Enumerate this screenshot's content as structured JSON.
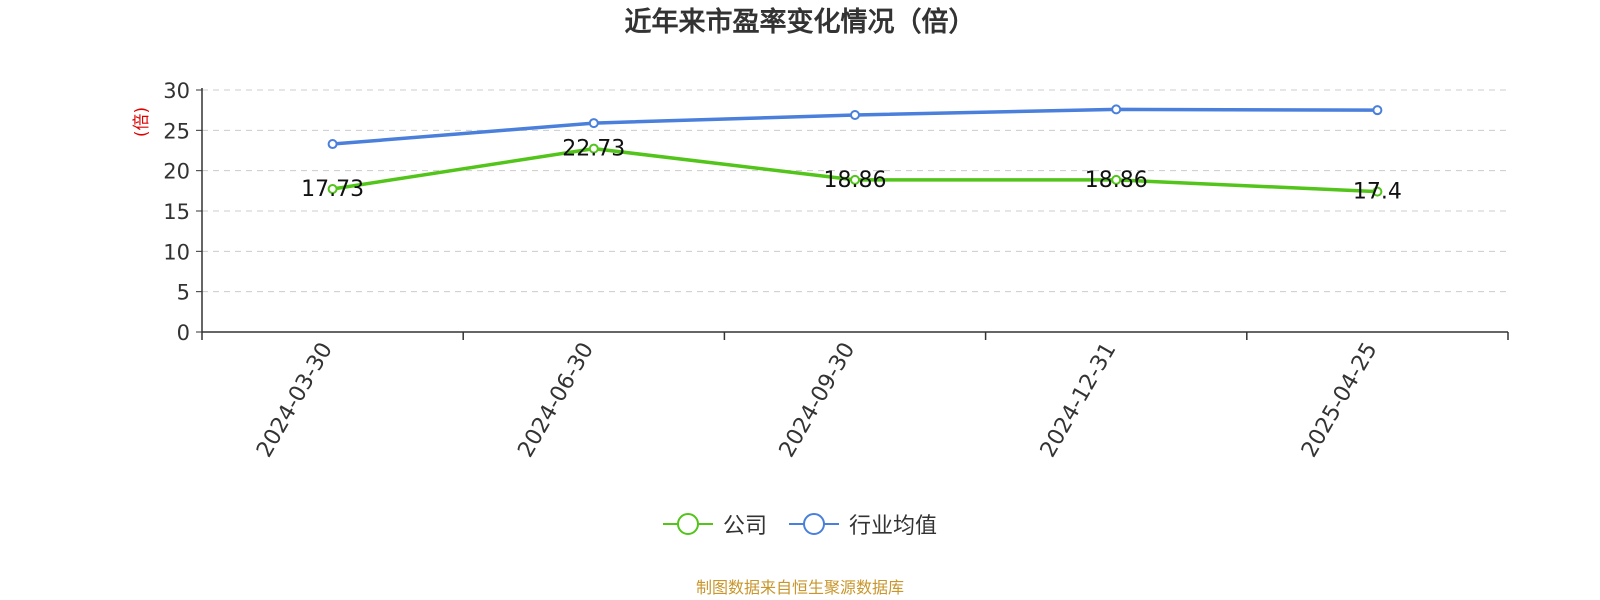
{
  "chart_data": {
    "type": "line",
    "title": "近年来市盈率变化情况（倍）",
    "ylabel": "(倍)",
    "xlabel": "",
    "categories": [
      "2024-03-30",
      "2024-06-30",
      "2024-09-30",
      "2024-12-31",
      "2025-04-25"
    ],
    "ylim": [
      0,
      30
    ],
    "yticks": [
      0,
      5,
      10,
      15,
      20,
      25,
      30
    ],
    "grid": true,
    "legend_position": "bottom-center",
    "series": [
      {
        "name": "公司",
        "values": [
          17.73,
          22.73,
          18.86,
          18.86,
          17.4
        ],
        "labels": [
          "17.73",
          "22.73",
          "18.86",
          "18.86",
          "17.4"
        ],
        "color": "#52c41a"
      },
      {
        "name": "行业均值",
        "values": [
          23.3,
          25.9,
          26.9,
          27.6,
          27.5
        ],
        "color": "#4a7fdc"
      }
    ]
  },
  "source_note": "制图数据来自恒生聚源数据库",
  "colors": {
    "axis": "#333333",
    "grid": "#cccccc",
    "ylabel": "#e00000",
    "source": "#c8962c"
  }
}
